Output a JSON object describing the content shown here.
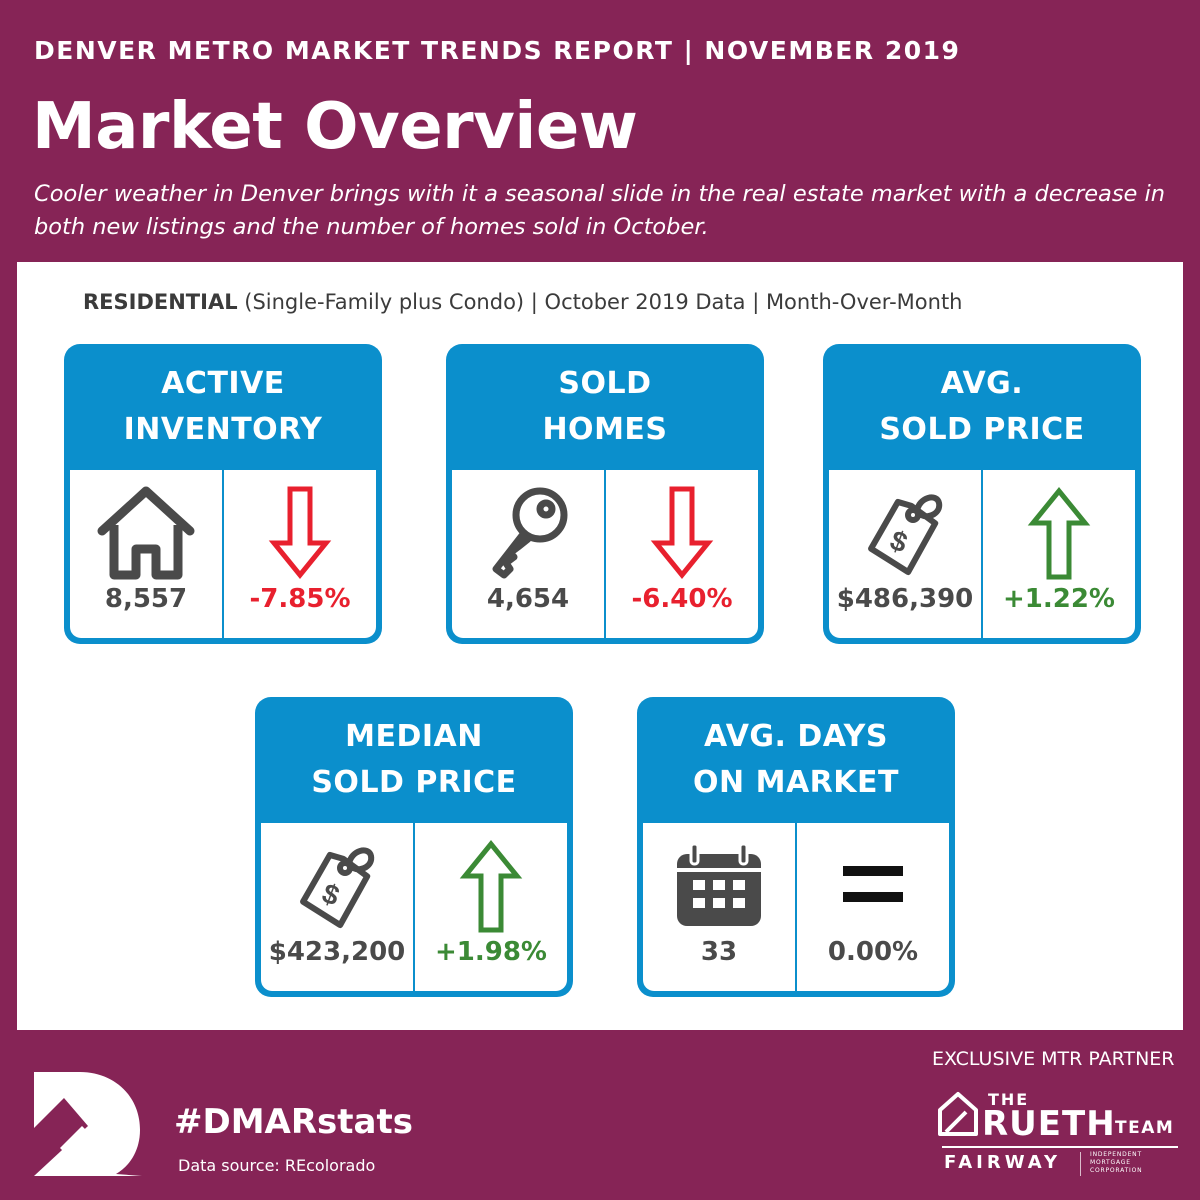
{
  "header": {
    "report_line": "DENVER METRO MARKET TRENDS REPORT  |  NOVEMBER 2019",
    "title": "Market Overview",
    "subtitle": "Cooler weather in Denver brings with it a seasonal slide in the real estate market with a decrease in both new listings and the number of homes sold in October."
  },
  "panel": {
    "residential_bold": "RESIDENTIAL",
    "residential_rest": " (Single-Family plus Condo) | October 2019 Data | Month-Over-Month"
  },
  "cards": [
    {
      "title_line1": "ACTIVE",
      "title_line2": "INVENTORY",
      "icon": "house-icon",
      "value": "8,557",
      "change": "-7.85%",
      "direction": "down"
    },
    {
      "title_line1": "SOLD",
      "title_line2": "HOMES",
      "icon": "key-icon",
      "value": "4,654",
      "change": "-6.40%",
      "direction": "down"
    },
    {
      "title_line1": "AVG.",
      "title_line2": "SOLD PRICE",
      "icon": "price-tag-icon",
      "value": "$486,390",
      "change": "+1.22%",
      "direction": "up"
    },
    {
      "title_line1": "MEDIAN",
      "title_line2": "SOLD PRICE",
      "icon": "price-tag-icon",
      "value": "$423,200",
      "change": "+1.98%",
      "direction": "up"
    },
    {
      "title_line1": "AVG. DAYS",
      "title_line2": "ON MARKET",
      "icon": "calendar-icon",
      "value": "33",
      "change": "0.00%",
      "direction": "equal"
    }
  ],
  "footer": {
    "hashtag": "#DMARstats",
    "data_source": "Data source: REcolorado",
    "partner_label": "EXCLUSIVE MTR PARTNER",
    "partner_the": "THE",
    "partner_rueth": "RUETH",
    "partner_team": "TEAM",
    "partner_fairway": "FAIRWAY",
    "partner_corp": "INDEPENDENT MORTGAGE CORPORATION"
  },
  "colors": {
    "background": "#862456",
    "card_blue": "#0b8fcc",
    "down_red": "#e8202e",
    "up_green": "#3b8a35",
    "icon_gray": "#4a4a4a"
  }
}
